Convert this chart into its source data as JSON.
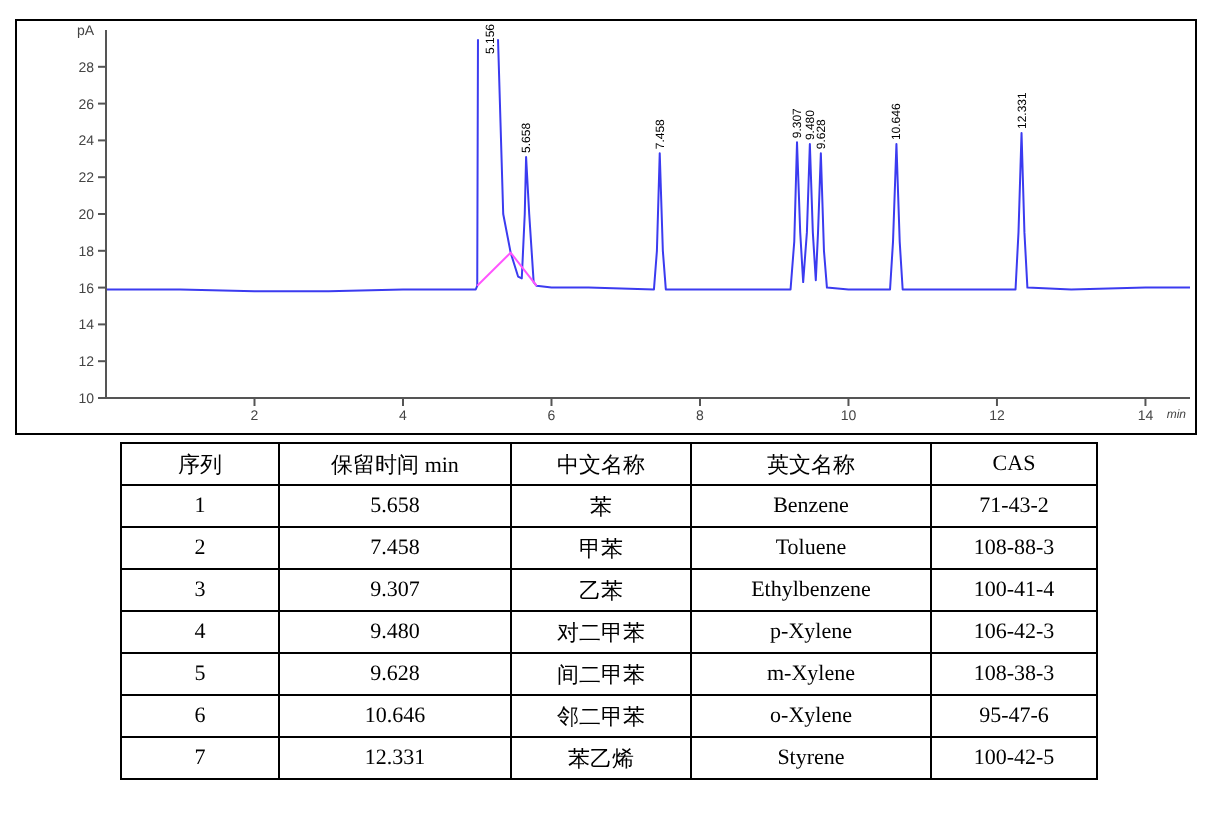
{
  "chart_data": [
    {
      "type": "line",
      "xlabel": "min",
      "ylabel": "pA",
      "xlim": [
        0,
        14.6
      ],
      "ylim": [
        10,
        30
      ],
      "xticks": [
        2,
        4,
        6,
        8,
        10,
        12,
        14
      ],
      "yticks": [
        10,
        12,
        14,
        16,
        18,
        20,
        22,
        24,
        26,
        28
      ],
      "grid": false,
      "marker": "none",
      "line_style": "solid",
      "series": [
        {
          "color": "#3b3bf0",
          "x": [
            0,
            0.5,
            1,
            2,
            3,
            4,
            4.98,
            5.0,
            5.01,
            5.156,
            5.28,
            5.35,
            5.45,
            5.55,
            5.6,
            5.64,
            5.658,
            5.7,
            5.76,
            5.8,
            6.0,
            6.5,
            7.38,
            7.42,
            7.458,
            7.5,
            7.54,
            8,
            9.22,
            9.27,
            9.307,
            9.35,
            9.39,
            9.44,
            9.48,
            9.52,
            9.56,
            9.59,
            9.628,
            9.67,
            9.71,
            10,
            10.56,
            10.6,
            10.646,
            10.69,
            10.73,
            11.5,
            12.25,
            12.29,
            12.331,
            12.37,
            12.41,
            13,
            14,
            14.6
          ],
          "values": [
            15.9,
            15.9,
            15.9,
            15.8,
            15.8,
            15.9,
            15.9,
            16.1,
            29.5,
            null,
            29.5,
            20,
            17.9,
            16.6,
            16.5,
            20,
            23.1,
            20,
            16.3,
            16.1,
            16.0,
            16.0,
            15.9,
            18,
            23.3,
            18,
            15.9,
            15.9,
            15.9,
            18.5,
            23.9,
            19,
            16.3,
            19,
            23.8,
            19,
            16.4,
            19,
            23.3,
            18,
            16,
            15.9,
            15.9,
            18.5,
            23.8,
            18.5,
            15.9,
            15.9,
            15.9,
            19,
            24.4,
            19,
            16.0,
            15.9,
            16.0,
            16.0
          ]
        },
        {
          "color": "#ff55ff",
          "x": [
            5.0,
            5.45,
            5.8
          ],
          "values": [
            16.1,
            17.9,
            16.1
          ]
        }
      ],
      "annotations": [
        {
          "text": "5.156"
        },
        {
          "text": "5.658",
          "x": 5.658,
          "y": 23.1
        },
        {
          "text": "7.458",
          "x": 7.458,
          "y": 23.3
        },
        {
          "text": "9.307",
          "x": 9.307,
          "y": 23.9
        },
        {
          "text": "9.480",
          "x": 9.48,
          "y": 23.8
        },
        {
          "text": "9.628",
          "x": 9.628,
          "y": 23.3
        },
        {
          "text": "10.646",
          "x": 10.646,
          "y": 23.8
        },
        {
          "text": "12.331",
          "x": 12.331,
          "y": 24.4
        },
        "序列",
        "保留时间 min",
        "中文名称",
        "英文名称",
        "CAS",
        "1",
        "5.658",
        "苯",
        "Benzene",
        "71-43-2",
        "2",
        "7.458",
        "甲苯",
        "Toluene",
        "108-88-3",
        "3",
        "9.307",
        "乙苯",
        "Ethylbenzene",
        "100-41-4",
        "4",
        "9.480",
        "对二甲苯",
        "p-Xylene",
        "106-42-3",
        "5",
        "9.628",
        "间二甲苯",
        "m-Xylene",
        "108-38-3",
        "6",
        "10.646",
        "邻二甲苯",
        "o-Xylene",
        "95-47-6",
        "7",
        "12.331",
        "苯乙烯",
        "Styrene",
        "100-42-5"
      ]
    }
  ]
}
